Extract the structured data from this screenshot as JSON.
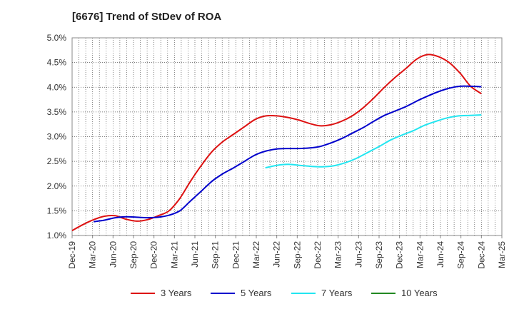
{
  "chart_data": {
    "type": "line",
    "title": "[6676]  Trend of StDev of ROA",
    "xlabel": "",
    "ylabel": "",
    "x_ticks": [
      "Dec-19",
      "Mar-20",
      "Jun-20",
      "Sep-20",
      "Dec-20",
      "Mar-21",
      "Jun-21",
      "Sep-21",
      "Dec-21",
      "Mar-22",
      "Jun-22",
      "Sep-22",
      "Dec-22",
      "Mar-23",
      "Jun-23",
      "Sep-23",
      "Dec-23",
      "Mar-24",
      "Jun-24",
      "Sep-24",
      "Dec-24",
      "Mar-25"
    ],
    "y_ticks": [
      "1.0%",
      "1.5%",
      "2.0%",
      "2.5%",
      "3.0%",
      "3.5%",
      "4.0%",
      "4.5%",
      "5.0%"
    ],
    "ylim": [
      1.0,
      5.0
    ],
    "grid": true,
    "legend_position": "bottom",
    "series": [
      {
        "name": "3 Years",
        "color": "#dd1111",
        "values": [
          1.1,
          1.22,
          1.32,
          1.39,
          1.4,
          1.33,
          1.29,
          1.32,
          1.4,
          1.5,
          1.75,
          2.1,
          2.42,
          2.7,
          2.9,
          3.05,
          3.2,
          3.35,
          3.42,
          3.42,
          3.39,
          3.34,
          3.27,
          3.22,
          3.24,
          3.31,
          3.42,
          3.58,
          3.78,
          4.0,
          4.2,
          4.38,
          4.57,
          4.66,
          4.62,
          4.5,
          4.29,
          4.02,
          3.87
        ]
      },
      {
        "name": "5 Years",
        "color": "#0000cc",
        "values": [
          null,
          null,
          1.28,
          1.31,
          1.36,
          1.38,
          1.37,
          1.36,
          1.37,
          1.41,
          1.5,
          1.7,
          1.9,
          2.1,
          2.25,
          2.37,
          2.5,
          2.63,
          2.71,
          2.75,
          2.76,
          2.76,
          2.77,
          2.8,
          2.87,
          2.96,
          3.07,
          3.18,
          3.31,
          3.43,
          3.52,
          3.61,
          3.72,
          3.82,
          3.91,
          3.98,
          4.02,
          4.02,
          4.01
        ]
      },
      {
        "name": "7 Years",
        "color": "#22e5f0",
        "values": [
          null,
          null,
          null,
          null,
          null,
          null,
          null,
          null,
          null,
          null,
          null,
          null,
          null,
          null,
          null,
          null,
          null,
          2.37,
          2.42,
          2.44,
          2.42,
          2.4,
          2.39,
          2.41,
          2.47,
          2.56,
          2.68,
          2.8,
          2.93,
          3.03,
          3.12,
          3.23,
          3.31,
          3.38,
          3.42,
          3.43,
          3.44
        ]
      },
      {
        "name": "10 Years",
        "color": "#228822",
        "values": []
      }
    ]
  }
}
